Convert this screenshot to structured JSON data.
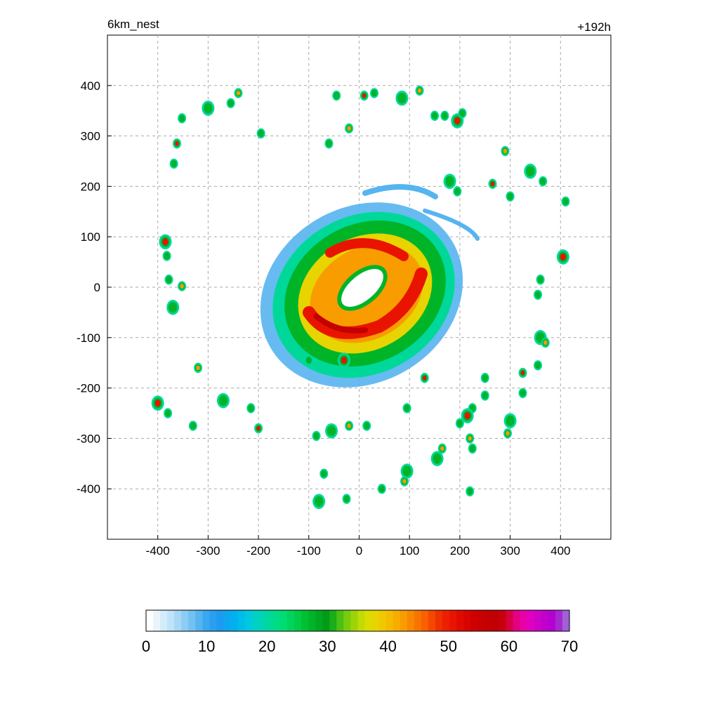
{
  "chart_data": {
    "type": "heatmap",
    "title_left": "6km_nest",
    "title_right": "+192h",
    "xlabel": "",
    "ylabel": "",
    "xlim": [
      -500,
      500
    ],
    "ylim": [
      -500,
      500
    ],
    "x_ticks": [
      -400,
      -300,
      -200,
      -100,
      0,
      100,
      200,
      300,
      400
    ],
    "y_ticks": [
      400,
      300,
      200,
      100,
      0,
      -100,
      -200,
      -300,
      -400
    ],
    "grid": true,
    "colorbar": {
      "min": 0,
      "max": 70,
      "tick_values": [
        0,
        10,
        20,
        30,
        40,
        50,
        60,
        70
      ],
      "colors": [
        "#ffffff",
        "#eaf4fc",
        "#d4ecfa",
        "#bfe3f8",
        "#a6d8f6",
        "#8ccdf4",
        "#72c1f2",
        "#56b4f0",
        "#3aa8ee",
        "#2a9ff0",
        "#1c9bf0",
        "#0fa6f0",
        "#00b0f0",
        "#00bce8",
        "#00c8e0",
        "#00d0c8",
        "#00d4b0",
        "#00d89a",
        "#00dc86",
        "#00dc70",
        "#00d45c",
        "#00cc48",
        "#00c034",
        "#00b428",
        "#00a820",
        "#009c18",
        "#1aae18",
        "#4cc012",
        "#78cc0c",
        "#9cd408",
        "#c0dc04",
        "#dcdc00",
        "#e8d400",
        "#f0c800",
        "#f4bc00",
        "#f8ac00",
        "#f89c00",
        "#f88800",
        "#f87400",
        "#f86000",
        "#f44800",
        "#f03000",
        "#ec2000",
        "#e81400",
        "#e00a00",
        "#d80400",
        "#d00000",
        "#c80000",
        "#c40000",
        "#c00004",
        "#c8000c",
        "#d80040",
        "#e40080",
        "#e800a8",
        "#e000c0",
        "#d000c8",
        "#c000cc",
        "#b400d0",
        "#a828d0",
        "#a060d8"
      ]
    },
    "series": []
  }
}
